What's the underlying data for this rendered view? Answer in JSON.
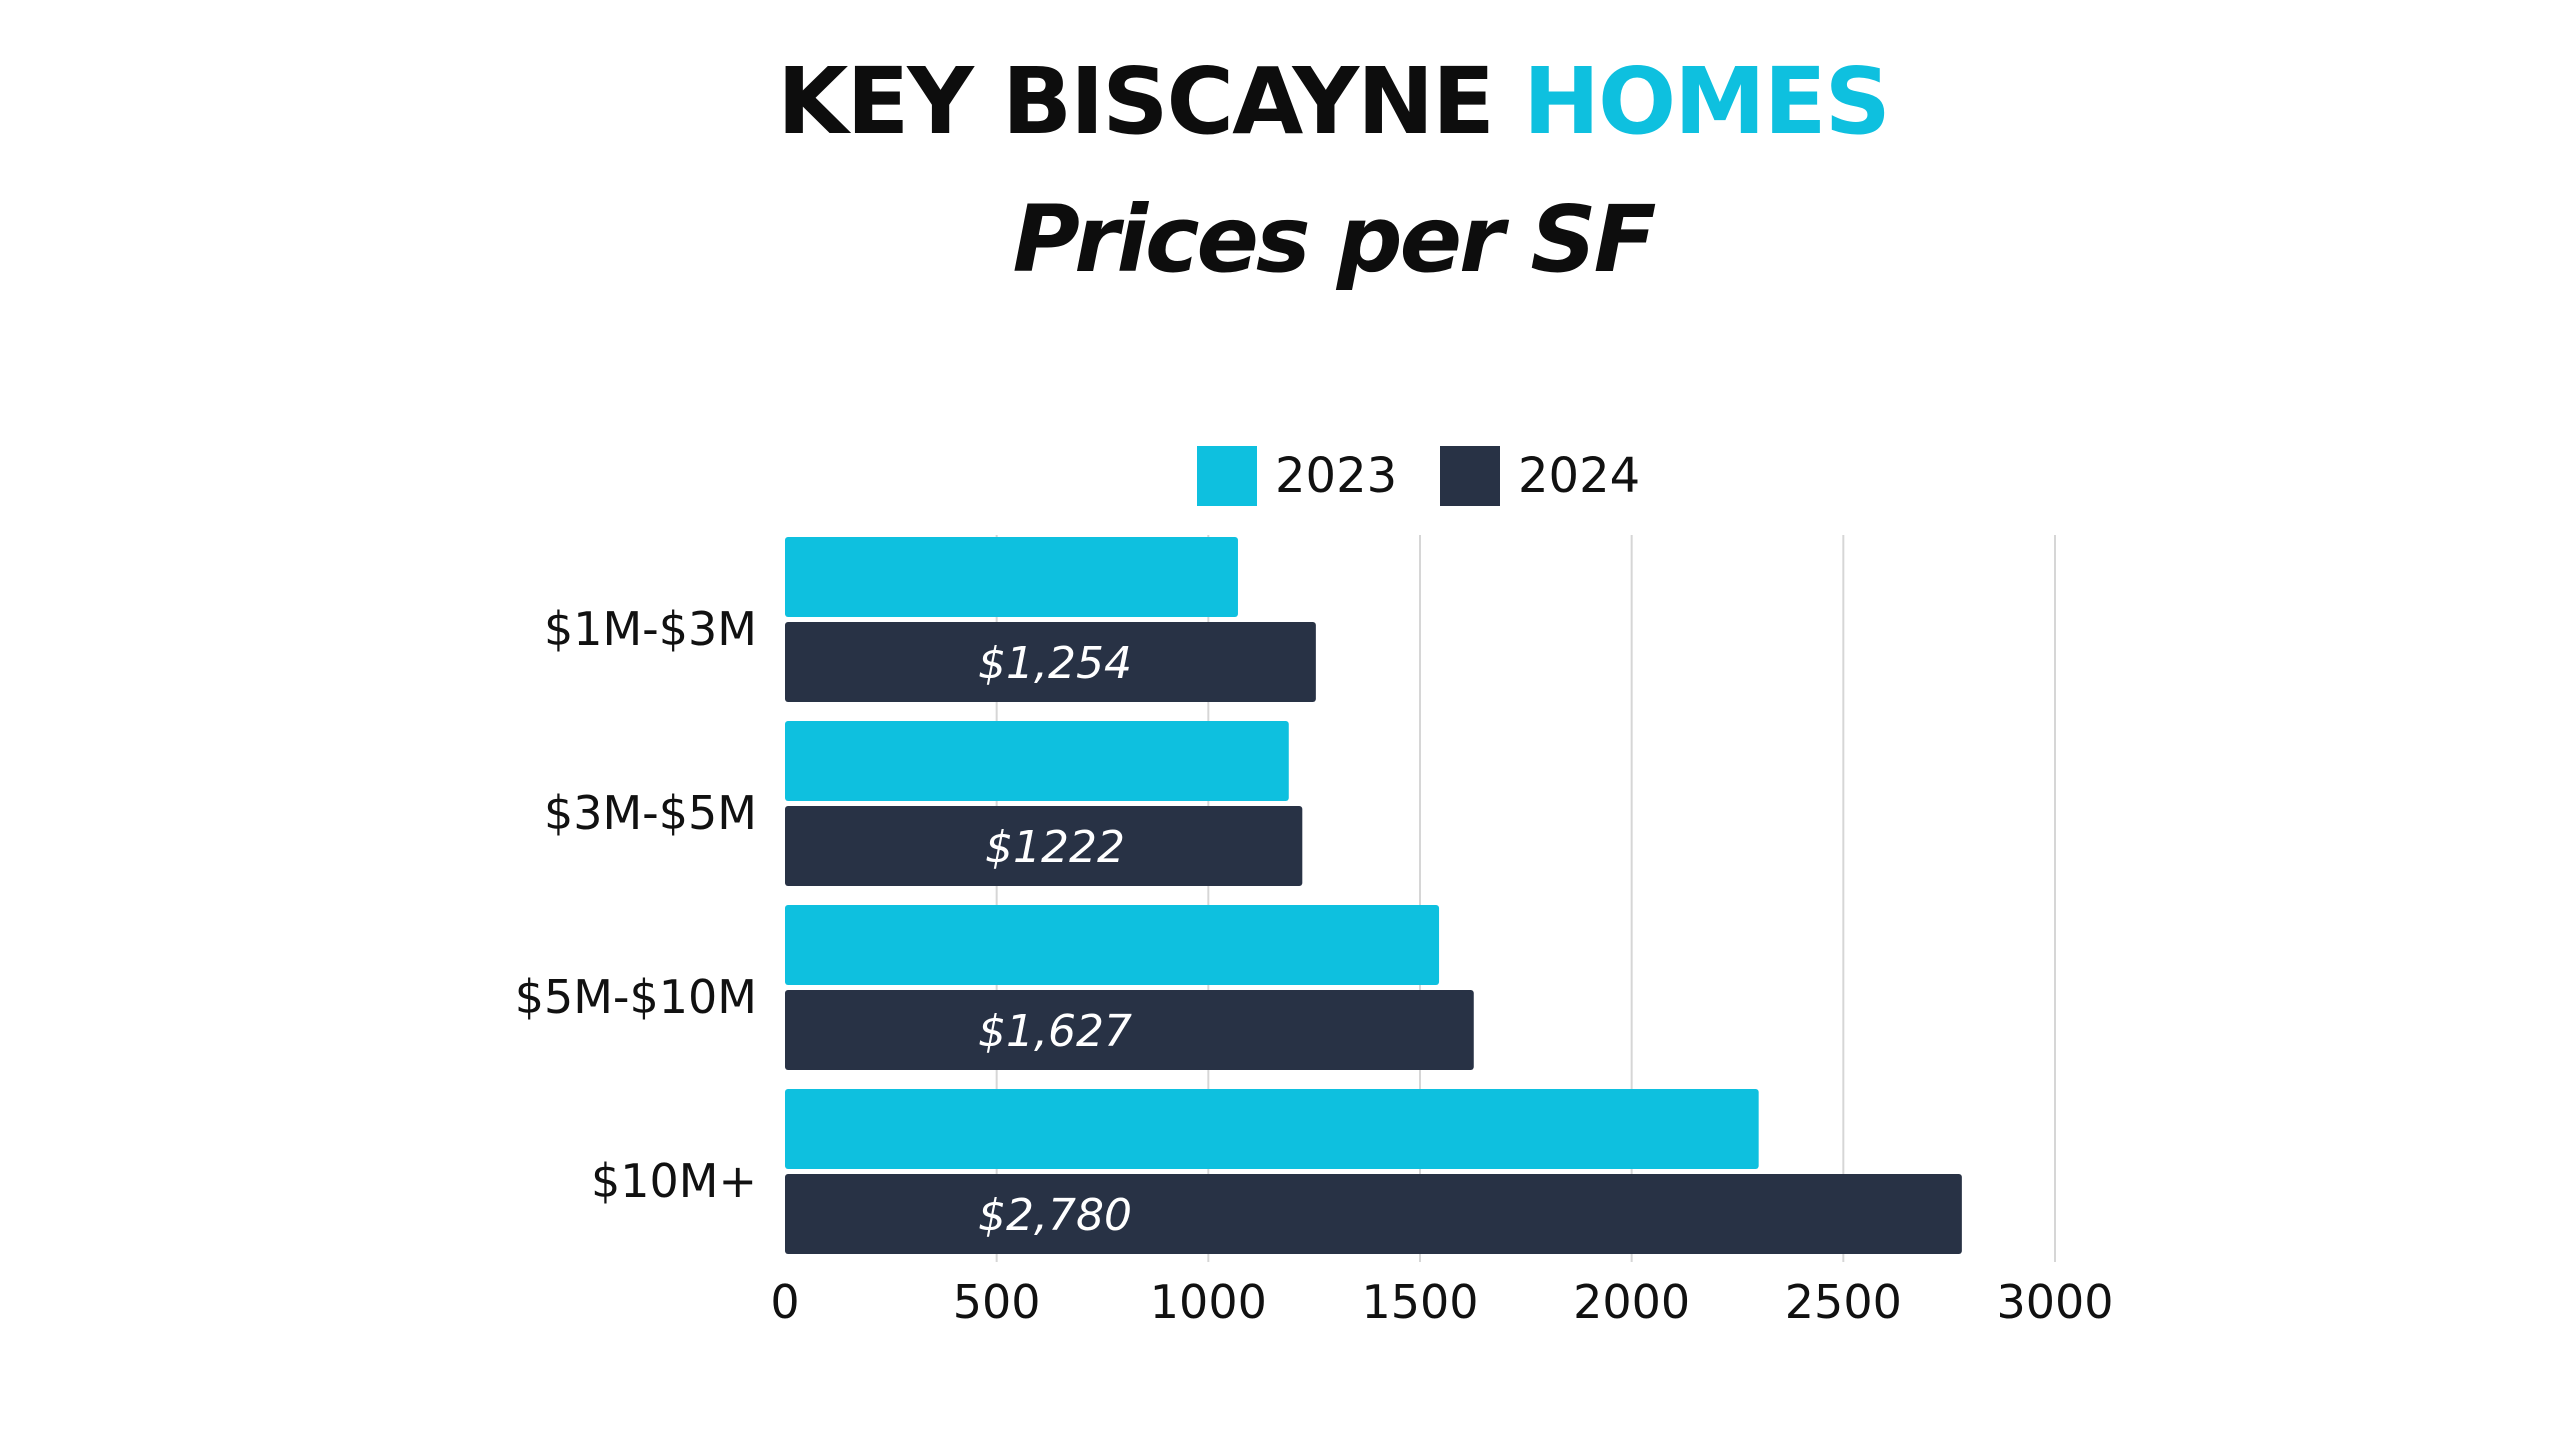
{
  "header": {
    "title_main": "KEY BISCAYNE",
    "title_accent": "HOMES",
    "subtitle": "Prices per SF"
  },
  "colors": {
    "series_2023": "#0ec0df",
    "series_2024": "#283245",
    "accent": "#0ec0df",
    "grid": "#d6d6d6",
    "text": "#111111"
  },
  "chart_data": {
    "type": "bar",
    "orientation": "horizontal",
    "categories": [
      "$1M-$3M",
      "$3M-$5M",
      "$5M-$10M",
      "$10M+"
    ],
    "series": [
      {
        "name": "2023",
        "values": [
          1070,
          1190,
          1545,
          2300
        ]
      },
      {
        "name": "2024",
        "values": [
          1254,
          1222,
          1627,
          2780
        ],
        "data_labels": [
          "$1,254",
          "$1222",
          "$1,627",
          "$2,780"
        ]
      }
    ],
    "xlim": [
      0,
      3000
    ],
    "xticks": [
      0,
      500,
      1000,
      1500,
      2000,
      2500,
      3000
    ],
    "grid": true,
    "legend_position": "top"
  }
}
